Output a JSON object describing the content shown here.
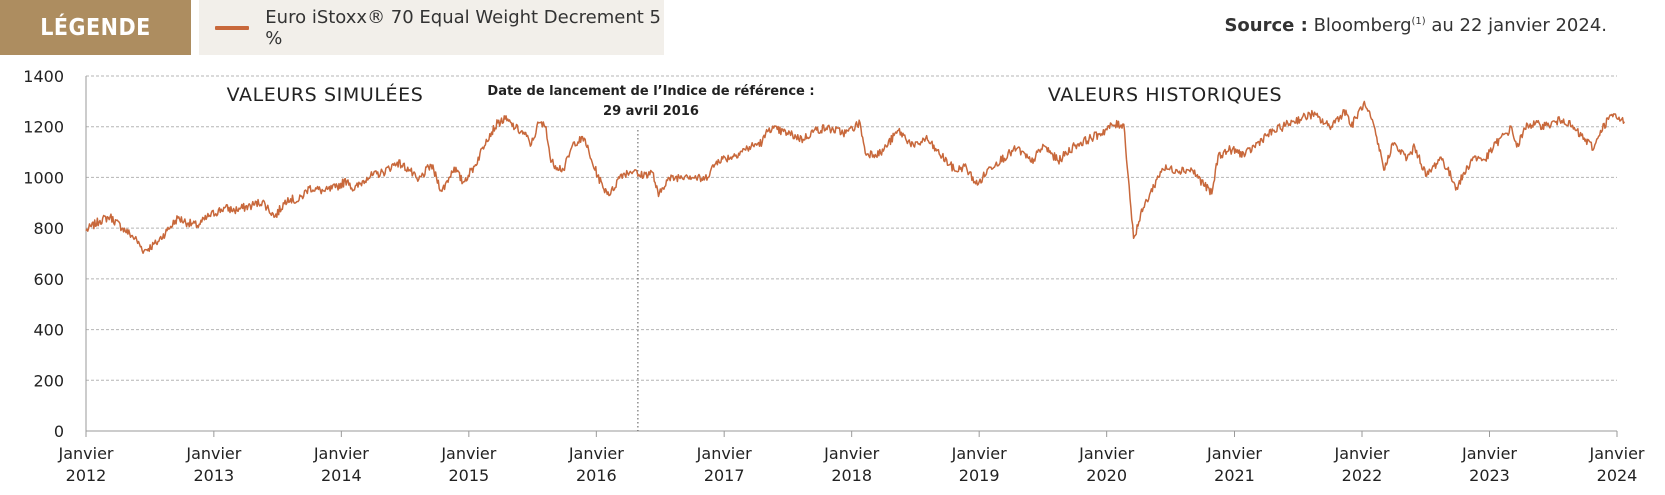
{
  "legend": {
    "tag": "LÉGENDE",
    "series_label": "Euro iStoxx® 70 Equal Weight Decrement 5 %",
    "series_color": "#c8683b"
  },
  "source": {
    "prefix": "Source :",
    "text": "Bloomberg",
    "sup": "(1)",
    "suffix": " au 22 janvier 2024."
  },
  "chart_data": {
    "type": "line",
    "title": "",
    "xlabel": "",
    "ylabel": "",
    "ylim": [
      0,
      1400
    ],
    "xlim": [
      "2012-01-01",
      "2024-01-01"
    ],
    "grid": "horizontal dashed",
    "y_ticks": [
      0,
      200,
      400,
      600,
      800,
      1000,
      1200,
      1400
    ],
    "x_ticks": [
      {
        "year": 2012,
        "label1": "Janvier",
        "label2": "2012"
      },
      {
        "year": 2013,
        "label1": "Janvier",
        "label2": "2013"
      },
      {
        "year": 2014,
        "label1": "Janvier",
        "label2": "2014"
      },
      {
        "year": 2015,
        "label1": "Janvier",
        "label2": "2015"
      },
      {
        "year": 2016,
        "label1": "Janvier",
        "label2": "2016"
      },
      {
        "year": 2017,
        "label1": "Janvier",
        "label2": "2017"
      },
      {
        "year": 2018,
        "label1": "Janvier",
        "label2": "2018"
      },
      {
        "year": 2019,
        "label1": "Janvier",
        "label2": "2019"
      },
      {
        "year": 2020,
        "label1": "Janvier",
        "label2": "2020"
      },
      {
        "year": 2021,
        "label1": "Janvier",
        "label2": "2021"
      },
      {
        "year": 2022,
        "label1": "Janvier",
        "label2": "2022"
      },
      {
        "year": 2023,
        "label1": "Janvier",
        "label2": "2023"
      },
      {
        "year": 2024,
        "label1": "Janvier",
        "label2": "2024"
      }
    ],
    "annotations": {
      "simulated": "VALEURS SIMULÉES",
      "historical": "VALEURS HISTORIQUES",
      "launch_line1": "Date de lancement de l’Indice de référence :",
      "launch_line2": "29 avril 2016",
      "launch_date": "2016-04-29"
    },
    "series": [
      {
        "name": "Euro iStoxx® 70 Equal Weight Decrement 5 %",
        "color": "#c8683b",
        "points": [
          [
            "2012-01-01",
            790
          ],
          [
            "2012-02-10",
            830
          ],
          [
            "2012-03-10",
            845
          ],
          [
            "2012-04-15",
            800
          ],
          [
            "2012-05-20",
            760
          ],
          [
            "2012-06-15",
            710
          ],
          [
            "2012-07-20",
            740
          ],
          [
            "2012-08-20",
            790
          ],
          [
            "2012-09-20",
            840
          ],
          [
            "2012-10-20",
            820
          ],
          [
            "2012-11-15",
            810
          ],
          [
            "2012-12-20",
            850
          ],
          [
            "2013-02-01",
            880
          ],
          [
            "2013-03-01",
            870
          ],
          [
            "2013-04-20",
            890
          ],
          [
            "2013-05-20",
            905
          ],
          [
            "2013-06-25",
            845
          ],
          [
            "2013-08-01",
            920
          ],
          [
            "2013-08-30",
            905
          ],
          [
            "2013-10-01",
            960
          ],
          [
            "2013-11-15",
            945
          ],
          [
            "2013-12-15",
            960
          ],
          [
            "2014-01-20",
            990
          ],
          [
            "2014-02-05",
            950
          ],
          [
            "2014-03-15",
            1000
          ],
          [
            "2014-05-01",
            1020
          ],
          [
            "2014-06-10",
            1060
          ],
          [
            "2014-07-15",
            1030
          ],
          [
            "2014-08-08",
            985
          ],
          [
            "2014-09-15",
            1050
          ],
          [
            "2014-10-16",
            945
          ],
          [
            "2014-11-20",
            1040
          ],
          [
            "2014-12-15",
            980
          ],
          [
            "2015-01-20",
            1050
          ],
          [
            "2015-02-20",
            1150
          ],
          [
            "2015-03-25",
            1215
          ],
          [
            "2015-04-15",
            1230
          ],
          [
            "2015-05-15",
            1195
          ],
          [
            "2015-06-10",
            1170
          ],
          [
            "2015-06-29",
            1130
          ],
          [
            "2015-07-20",
            1215
          ],
          [
            "2015-08-10",
            1200
          ],
          [
            "2015-08-24",
            1060
          ],
          [
            "2015-09-29",
            1030
          ],
          [
            "2015-10-30",
            1140
          ],
          [
            "2015-11-30",
            1150
          ],
          [
            "2015-12-15",
            1075
          ],
          [
            "2016-01-20",
            960
          ],
          [
            "2016-02-11",
            935
          ],
          [
            "2016-03-10",
            1010
          ],
          [
            "2016-04-20",
            1030
          ],
          [
            "2016-04-29",
            1005
          ],
          [
            "2016-06-10",
            1020
          ],
          [
            "2016-06-27",
            925
          ],
          [
            "2016-07-20",
            990
          ],
          [
            "2016-09-15",
            1010
          ],
          [
            "2016-11-05",
            990
          ],
          [
            "2016-12-15",
            1070
          ],
          [
            "2017-01-20",
            1080
          ],
          [
            "2017-03-01",
            1110
          ],
          [
            "2017-04-20",
            1140
          ],
          [
            "2017-05-10",
            1195
          ],
          [
            "2017-06-30",
            1175
          ],
          [
            "2017-08-15",
            1150
          ],
          [
            "2017-09-15",
            1185
          ],
          [
            "2017-10-20",
            1195
          ],
          [
            "2017-12-15",
            1175
          ],
          [
            "2018-01-25",
            1215
          ],
          [
            "2018-02-09",
            1095
          ],
          [
            "2018-03-25",
            1095
          ],
          [
            "2018-05-15",
            1185
          ],
          [
            "2018-06-30",
            1120
          ],
          [
            "2018-08-01",
            1155
          ],
          [
            "2018-09-01",
            1105
          ],
          [
            "2018-10-26",
            1025
          ],
          [
            "2018-11-20",
            1045
          ],
          [
            "2018-12-27",
            970
          ],
          [
            "2019-02-01",
            1040
          ],
          [
            "2019-04-20",
            1115
          ],
          [
            "2019-05-30",
            1060
          ],
          [
            "2019-07-05",
            1125
          ],
          [
            "2019-08-15",
            1065
          ],
          [
            "2019-10-01",
            1125
          ],
          [
            "2019-12-10",
            1170
          ],
          [
            "2020-01-17",
            1205
          ],
          [
            "2020-02-19",
            1210
          ],
          [
            "2020-03-18",
            760
          ],
          [
            "2020-04-15",
            880
          ],
          [
            "2020-06-08",
            1035
          ],
          [
            "2020-07-20",
            1030
          ],
          [
            "2020-09-01",
            1030
          ],
          [
            "2020-10-28",
            935
          ],
          [
            "2020-11-15",
            1085
          ],
          [
            "2020-12-20",
            1110
          ],
          [
            "2021-02-01",
            1090
          ],
          [
            "2021-04-01",
            1165
          ],
          [
            "2021-06-15",
            1220
          ],
          [
            "2021-08-13",
            1250
          ],
          [
            "2021-09-30",
            1200
          ],
          [
            "2021-11-16",
            1265
          ],
          [
            "2021-12-01",
            1200
          ],
          [
            "2022-01-05",
            1290
          ],
          [
            "2022-01-28",
            1230
          ],
          [
            "2022-03-07",
            1030
          ],
          [
            "2022-03-29",
            1135
          ],
          [
            "2022-05-10",
            1075
          ],
          [
            "2022-06-01",
            1120
          ],
          [
            "2022-07-05",
            1005
          ],
          [
            "2022-08-15",
            1080
          ],
          [
            "2022-09-29",
            960
          ],
          [
            "2022-11-15",
            1080
          ],
          [
            "2022-12-20",
            1070
          ],
          [
            "2023-01-20",
            1135
          ],
          [
            "2023-03-06",
            1195
          ],
          [
            "2023-03-20",
            1120
          ],
          [
            "2023-04-20",
            1210
          ],
          [
            "2023-06-15",
            1205
          ],
          [
            "2023-08-01",
            1230
          ],
          [
            "2023-10-27",
            1115
          ],
          [
            "2023-11-15",
            1185
          ],
          [
            "2023-12-15",
            1245
          ],
          [
            "2024-01-22",
            1220
          ]
        ]
      }
    ]
  }
}
